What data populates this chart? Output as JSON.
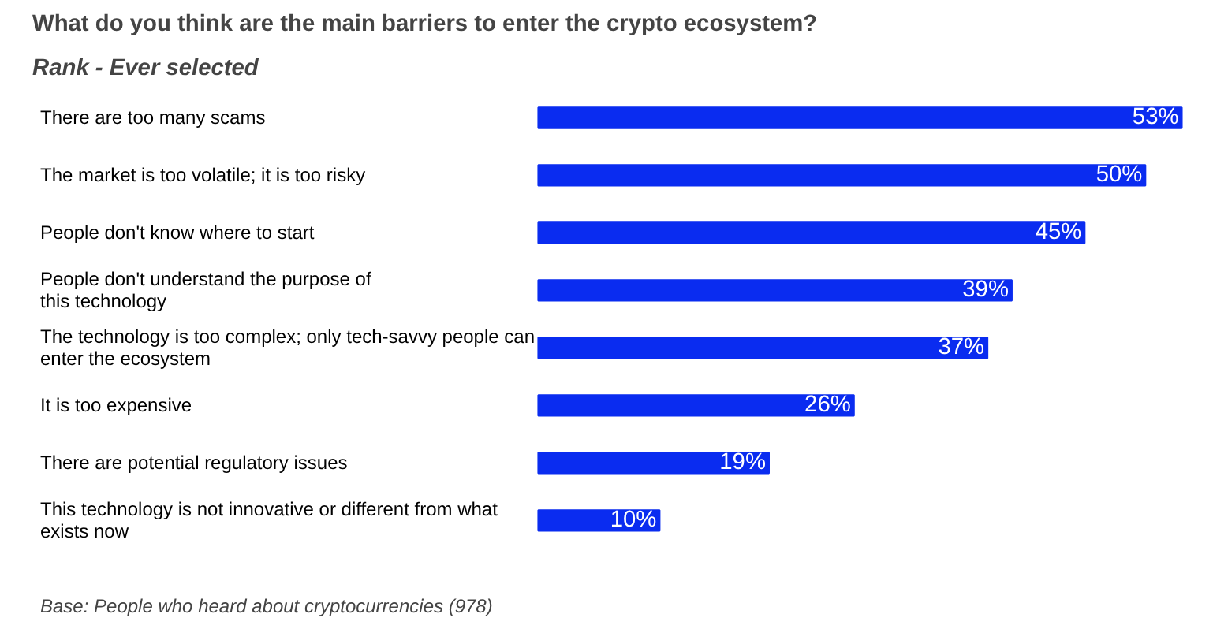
{
  "chart_data": {
    "type": "bar",
    "orientation": "horizontal",
    "title": "What do you think are the main barriers to enter the crypto ecosystem?",
    "subtitle": "Rank - Ever selected",
    "categories": [
      "There are too many scams",
      "The market is too volatile; it is too risky",
      "People don't know where to start",
      "People don't understand the purpose of\nthis technology",
      "The technology is too complex; only tech-savvy people can\nenter the ecosystem",
      "It is too expensive",
      "There are potential regulatory issues",
      "This technology is not innovative or different from what\nexists now"
    ],
    "values": [
      53,
      50,
      45,
      39,
      37,
      26,
      19,
      10
    ],
    "color": "#0a2cf0",
    "data_labels": true,
    "value_labels": [
      "53%",
      "50%",
      "45%",
      "39%",
      "37%",
      "26%",
      "19%",
      "10%"
    ],
    "annotations": [
      "Base: People who heard about cryptocurrencies (978)"
    ]
  }
}
